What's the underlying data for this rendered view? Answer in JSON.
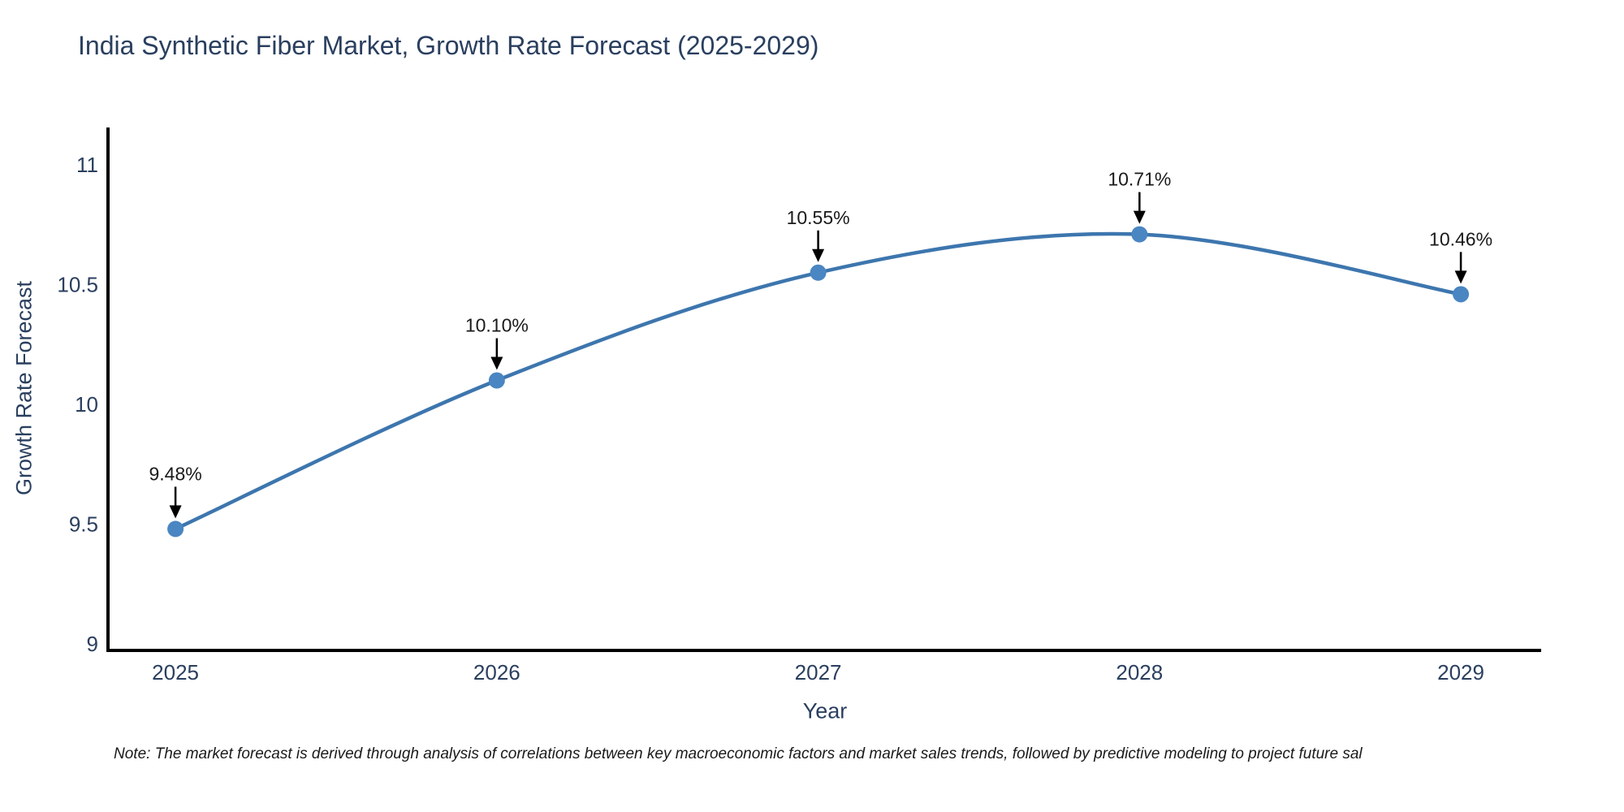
{
  "note": "Note: The market forecast is derived through analysis of correlations between key macroeconomic factors and market sales trends, followed by predictive modeling to project future sal",
  "chart_data": {
    "type": "line",
    "title": "India Synthetic Fiber Market, Growth Rate Forecast (2025-2029)",
    "xlabel": "Year",
    "ylabel": "Growth Rate Forecast",
    "x": [
      2025,
      2026,
      2027,
      2028,
      2029
    ],
    "categories": [
      "2025",
      "2026",
      "2027",
      "2028",
      "2029"
    ],
    "values": [
      9.48,
      10.1,
      10.55,
      10.71,
      10.46
    ],
    "point_labels": [
      "9.48%",
      "10.10%",
      "10.55%",
      "10.71%",
      "10.46%"
    ],
    "y_ticks": [
      9,
      9.5,
      10,
      10.5,
      11
    ],
    "y_tick_labels": [
      "9",
      "9.5",
      "10",
      "10.5",
      "11"
    ],
    "xlim": [
      2024.79,
      2029.25
    ],
    "ylim": [
      8.973,
      11.156
    ],
    "grid": false,
    "legend": "none",
    "line_shape": "spline",
    "colors": {
      "line": "#3d76ae",
      "marker": "#4a86c2",
      "axis": "#000000",
      "tick_label": "#2a3f5f",
      "title": "#2a3f5f",
      "annotation": "#1a1a1a",
      "background": "#ffffff"
    }
  }
}
